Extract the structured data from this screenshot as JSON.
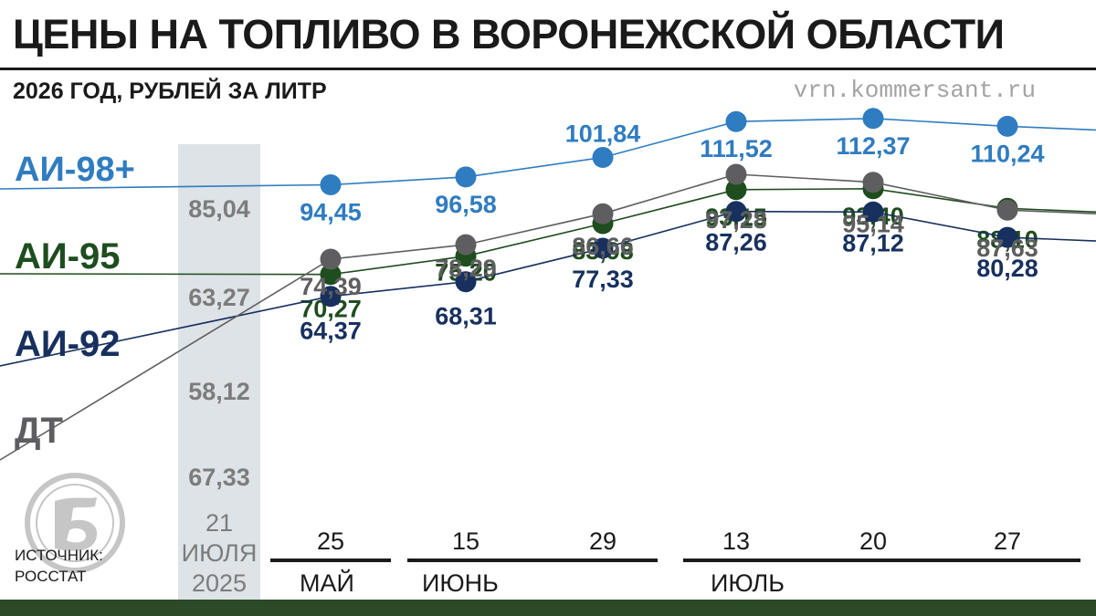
{
  "header": {
    "title": "ЦЕНЫ НА ТОПЛИВО В ВОРОНЕЖСКОЙ ОБЛАСТИ",
    "subtitle": "2026 ГОД, РУБЛЕЙ ЗА ЛИТР",
    "website": "vrn.kommersant.ru"
  },
  "source": {
    "line1": "ИСТОЧНИК:",
    "line2": "РОССТАТ"
  },
  "logo": {
    "icon": "kommersant-logo-icon"
  },
  "chart_data": {
    "type": "line",
    "title": "ЦЕНЫ НА ТОПЛИВО В ВОРОНЕЖСКОЙ ОБЛАСТИ",
    "subtitle": "2026 ГОД, РУБЛЕЙ ЗА ЛИТР",
    "baseline": {
      "label_lines": [
        "21",
        "ИЮЛЯ",
        "2025"
      ]
    },
    "x_ticks": [
      "25",
      "15",
      "29",
      "13",
      "20",
      "27"
    ],
    "months": [
      "МАЙ",
      "ИЮНЬ",
      "ИЮЛЬ"
    ],
    "series": [
      {
        "name": "АИ-98+",
        "color": "#2f7cc1",
        "baseline_value": "85,04",
        "values": [
          94.45,
          96.58,
          101.84,
          111.52,
          112.37,
          110.24
        ],
        "labels": [
          "94,45",
          "96,58",
          "101,84",
          "111,52",
          "112,37",
          "110,24"
        ]
      },
      {
        "name": "АИ-95",
        "color": "#1e4d1e",
        "baseline_value": "63,27",
        "values": [
          70.27,
          75.2,
          83.98,
          93.15,
          93.4,
          88.1
        ],
        "labels": [
          "70,27",
          "75,20",
          "83,98",
          "93,15",
          "93,40",
          "88,10"
        ]
      },
      {
        "name": "АИ-92",
        "color": "#17305e",
        "baseline_value": "58,12",
        "values": [
          64.37,
          68.31,
          77.33,
          87.26,
          87.12,
          80.28
        ],
        "labels": [
          "64,37",
          "68,31",
          "77,33",
          "87,26",
          "87,12",
          "80,28"
        ]
      },
      {
        "name": "ДТ",
        "color": "#5e5e60",
        "baseline_value": "67,33",
        "values": [
          74.39,
          78.29,
          86.66,
          97.28,
          95.14,
          87.63
        ],
        "labels": [
          "74,39",
          "78,29",
          "86,66",
          "97,28",
          "95,14",
          "87,63"
        ]
      }
    ]
  }
}
